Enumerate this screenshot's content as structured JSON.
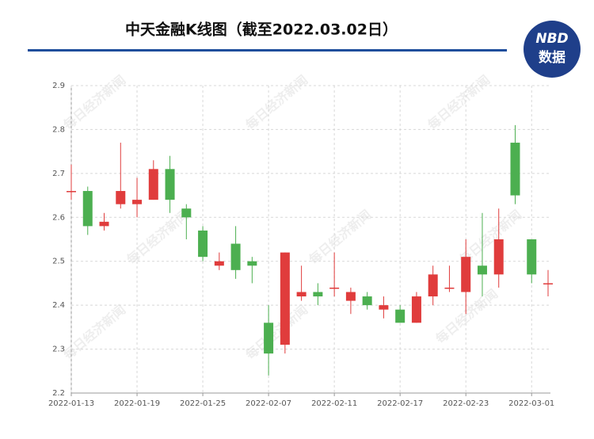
{
  "chart_data": {
    "type": "candlestick",
    "title": "中天金融K线图（截至2022.03.02日）",
    "logo": {
      "top": "NBD",
      "bottom": "数据"
    },
    "watermark": "每日经济新闻",
    "categories": [
      "2022-01-13",
      null,
      null,
      null,
      "2022-01-19",
      null,
      null,
      null,
      "2022-01-25",
      null,
      null,
      null,
      "2022-02-07",
      null,
      null,
      null,
      "2022-02-11",
      null,
      null,
      null,
      "2022-02-17",
      null,
      null,
      null,
      "2022-02-23",
      null,
      null,
      null,
      "2022-03-01",
      null
    ],
    "open": [
      2.66,
      2.66,
      2.58,
      2.63,
      2.63,
      2.64,
      2.71,
      2.62,
      2.57,
      2.49,
      2.54,
      2.5,
      2.36,
      2.31,
      2.42,
      2.43,
      2.44,
      2.41,
      2.42,
      2.39,
      2.39,
      2.36,
      2.42,
      2.44,
      2.43,
      2.49,
      2.47,
      2.77,
      2.55,
      2.45
    ],
    "high": [
      2.72,
      2.67,
      2.61,
      2.77,
      2.69,
      2.73,
      2.74,
      2.63,
      2.58,
      2.52,
      2.58,
      2.51,
      2.4,
      2.52,
      2.49,
      2.45,
      2.52,
      2.44,
      2.43,
      2.42,
      2.4,
      2.43,
      2.49,
      2.49,
      2.55,
      2.61,
      2.62,
      2.81,
      2.55,
      2.48
    ],
    "low": [
      2.64,
      2.56,
      2.57,
      2.62,
      2.6,
      2.64,
      2.61,
      2.55,
      2.5,
      2.48,
      2.46,
      2.45,
      2.24,
      2.29,
      2.41,
      2.4,
      2.42,
      2.38,
      2.39,
      2.37,
      2.36,
      2.36,
      2.4,
      2.43,
      2.38,
      2.42,
      2.44,
      2.63,
      2.45,
      2.42
    ],
    "close": [
      2.66,
      2.58,
      2.59,
      2.66,
      2.64,
      2.71,
      2.64,
      2.6,
      2.51,
      2.5,
      2.48,
      2.49,
      2.29,
      2.52,
      2.43,
      2.42,
      2.44,
      2.43,
      2.4,
      2.4,
      2.36,
      2.42,
      2.47,
      2.44,
      2.51,
      2.47,
      2.55,
      2.65,
      2.47,
      2.45
    ],
    "up_color": "#e03c3c",
    "down_color": "#4caf50",
    "ylim": [
      2.2,
      2.9
    ],
    "yticks": [
      2.2,
      2.3,
      2.4,
      2.5,
      2.6,
      2.7,
      2.8,
      2.9
    ],
    "grid": true
  }
}
